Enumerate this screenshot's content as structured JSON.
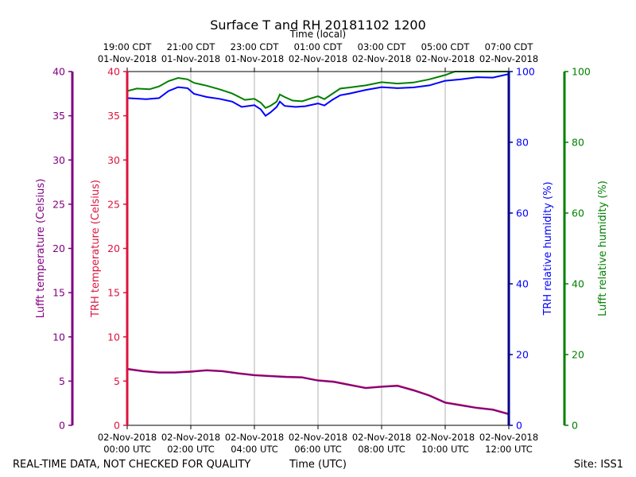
{
  "chart_data": {
    "type": "line",
    "title": "Surface T and RH 20181102 1200",
    "top_axis_label": "Time (local)",
    "bottom_axis_label": "Time (UTC)",
    "footer_left": "REAL-TIME DATA, NOT CHECKED FOR QUALITY",
    "footer_right": "Site: ISS1",
    "x_range_hours_utc": [
      0,
      12
    ],
    "x_ticks_utc": [
      {
        "h": 0,
        "date": "02-Nov-2018",
        "time": "00:00 UTC"
      },
      {
        "h": 2,
        "date": "02-Nov-2018",
        "time": "02:00 UTC"
      },
      {
        "h": 4,
        "date": "02-Nov-2018",
        "time": "04:00 UTC"
      },
      {
        "h": 6,
        "date": "02-Nov-2018",
        "time": "06:00 UTC"
      },
      {
        "h": 8,
        "date": "02-Nov-2018",
        "time": "08:00 UTC"
      },
      {
        "h": 10,
        "date": "02-Nov-2018",
        "time": "10:00 UTC"
      },
      {
        "h": 12,
        "date": "02-Nov-2018",
        "time": "12:00 UTC"
      }
    ],
    "x_ticks_local": [
      {
        "h": 0,
        "time": "19:00 CDT",
        "date": "01-Nov-2018"
      },
      {
        "h": 2,
        "time": "21:00 CDT",
        "date": "01-Nov-2018"
      },
      {
        "h": 4,
        "time": "23:00 CDT",
        "date": "01-Nov-2018"
      },
      {
        "h": 6,
        "time": "01:00 CDT",
        "date": "02-Nov-2018"
      },
      {
        "h": 8,
        "time": "03:00 CDT",
        "date": "02-Nov-2018"
      },
      {
        "h": 10,
        "time": "05:00 CDT",
        "date": "02-Nov-2018"
      },
      {
        "h": 12,
        "time": "07:00 CDT",
        "date": "02-Nov-2018"
      }
    ],
    "axes": {
      "lufft_temp": {
        "label": "Lufft temperature (Celsius)",
        "range": [
          0,
          40
        ],
        "ticks": [
          0,
          5,
          10,
          15,
          20,
          25,
          30,
          35,
          40
        ],
        "color": "#800080"
      },
      "trh_temp": {
        "label": "TRH temperature (Celsius)",
        "range": [
          0,
          40
        ],
        "ticks": [
          0,
          5,
          10,
          15,
          20,
          25,
          30,
          35,
          40
        ],
        "color": "#dc143c"
      },
      "trh_rh": {
        "label": "TRH relative humidity (%)",
        "range": [
          0,
          100
        ],
        "ticks": [
          0,
          20,
          40,
          60,
          80,
          100
        ],
        "color": "#0000ff",
        "spine_color": "#00008b"
      },
      "lufft_rh": {
        "label": "Lufft relative humidity (%)",
        "range": [
          0,
          100
        ],
        "ticks": [
          0,
          20,
          40,
          60,
          80,
          100
        ],
        "color": "#008000"
      }
    },
    "series": [
      {
        "name": "Lufft relative humidity",
        "axis": "lufft_rh",
        "color": "#008000",
        "points": [
          [
            0,
            94.5
          ],
          [
            0.3,
            95.2
          ],
          [
            0.7,
            95.0
          ],
          [
            1.0,
            95.8
          ],
          [
            1.3,
            97.3
          ],
          [
            1.6,
            98.2
          ],
          [
            1.9,
            97.8
          ],
          [
            2.1,
            96.8
          ],
          [
            2.5,
            96.0
          ],
          [
            2.9,
            95.0
          ],
          [
            3.3,
            93.8
          ],
          [
            3.7,
            92.0
          ],
          [
            4.0,
            92.3
          ],
          [
            4.2,
            91.2
          ],
          [
            4.35,
            89.7
          ],
          [
            4.5,
            90.3
          ],
          [
            4.7,
            91.5
          ],
          [
            4.8,
            93.5
          ],
          [
            4.95,
            92.8
          ],
          [
            5.2,
            91.8
          ],
          [
            5.5,
            91.6
          ],
          [
            5.8,
            92.5
          ],
          [
            6.0,
            93.0
          ],
          [
            6.2,
            92.2
          ],
          [
            6.45,
            93.7
          ],
          [
            6.7,
            95.2
          ],
          [
            7.0,
            95.5
          ],
          [
            7.5,
            96.1
          ],
          [
            8.0,
            97.0
          ],
          [
            8.5,
            96.6
          ],
          [
            9.0,
            96.9
          ],
          [
            9.5,
            97.8
          ],
          [
            10.0,
            99.0
          ],
          [
            10.3,
            100.0
          ],
          [
            12.0,
            100.0
          ]
        ]
      },
      {
        "name": "TRH relative humidity",
        "axis": "trh_rh",
        "color": "#0000ff",
        "points": [
          [
            0,
            92.5
          ],
          [
            0.6,
            92.2
          ],
          [
            1.0,
            92.5
          ],
          [
            1.3,
            94.5
          ],
          [
            1.6,
            95.6
          ],
          [
            1.9,
            95.3
          ],
          [
            2.1,
            93.7
          ],
          [
            2.5,
            92.8
          ],
          [
            2.9,
            92.3
          ],
          [
            3.3,
            91.5
          ],
          [
            3.6,
            90.0
          ],
          [
            4.0,
            90.5
          ],
          [
            4.2,
            89.3
          ],
          [
            4.35,
            87.5
          ],
          [
            4.5,
            88.4
          ],
          [
            4.7,
            90.0
          ],
          [
            4.8,
            91.5
          ],
          [
            4.95,
            90.3
          ],
          [
            5.3,
            90.0
          ],
          [
            5.6,
            90.2
          ],
          [
            6.0,
            91.0
          ],
          [
            6.2,
            90.4
          ],
          [
            6.45,
            92.0
          ],
          [
            6.7,
            93.3
          ],
          [
            7.0,
            93.8
          ],
          [
            7.5,
            94.8
          ],
          [
            8.0,
            95.6
          ],
          [
            8.5,
            95.3
          ],
          [
            9.0,
            95.5
          ],
          [
            9.5,
            96.1
          ],
          [
            10.0,
            97.4
          ],
          [
            10.5,
            97.8
          ],
          [
            11.0,
            98.4
          ],
          [
            11.5,
            98.3
          ],
          [
            12.0,
            99.3
          ]
        ]
      },
      {
        "name": "TRH temperature",
        "axis": "trh_temp",
        "color": "#dc143c",
        "points": [
          [
            0,
            6.4
          ],
          [
            0.5,
            6.15
          ],
          [
            1.0,
            6.0
          ],
          [
            1.5,
            6.0
          ],
          [
            2.0,
            6.1
          ],
          [
            2.5,
            6.25
          ],
          [
            3.0,
            6.15
          ],
          [
            3.5,
            5.9
          ],
          [
            4.0,
            5.7
          ],
          [
            4.5,
            5.6
          ],
          [
            5.0,
            5.5
          ],
          [
            5.5,
            5.45
          ],
          [
            6.0,
            5.1
          ],
          [
            6.5,
            4.95
          ],
          [
            7.0,
            4.6
          ],
          [
            7.5,
            4.25
          ],
          [
            8.0,
            4.4
          ],
          [
            8.5,
            4.5
          ],
          [
            9.0,
            4.0
          ],
          [
            9.5,
            3.4
          ],
          [
            10.0,
            2.6
          ],
          [
            10.5,
            2.3
          ],
          [
            11.0,
            2.0
          ],
          [
            11.5,
            1.8
          ],
          [
            12.0,
            1.3
          ]
        ]
      },
      {
        "name": "Lufft temperature",
        "axis": "lufft_temp",
        "color": "#800080",
        "points": [
          [
            0,
            6.35
          ],
          [
            0.5,
            6.1
          ],
          [
            1.0,
            5.95
          ],
          [
            1.5,
            5.95
          ],
          [
            2.0,
            6.05
          ],
          [
            2.5,
            6.2
          ],
          [
            3.0,
            6.1
          ],
          [
            3.5,
            5.85
          ],
          [
            4.0,
            5.65
          ],
          [
            4.5,
            5.55
          ],
          [
            5.0,
            5.45
          ],
          [
            5.5,
            5.4
          ],
          [
            6.0,
            5.05
          ],
          [
            6.5,
            4.9
          ],
          [
            7.0,
            4.55
          ],
          [
            7.5,
            4.2
          ],
          [
            8.0,
            4.35
          ],
          [
            8.5,
            4.45
          ],
          [
            9.0,
            3.95
          ],
          [
            9.5,
            3.35
          ],
          [
            10.0,
            2.55
          ],
          [
            10.5,
            2.25
          ],
          [
            11.0,
            1.95
          ],
          [
            11.5,
            1.75
          ],
          [
            12.0,
            1.25
          ]
        ]
      }
    ]
  }
}
